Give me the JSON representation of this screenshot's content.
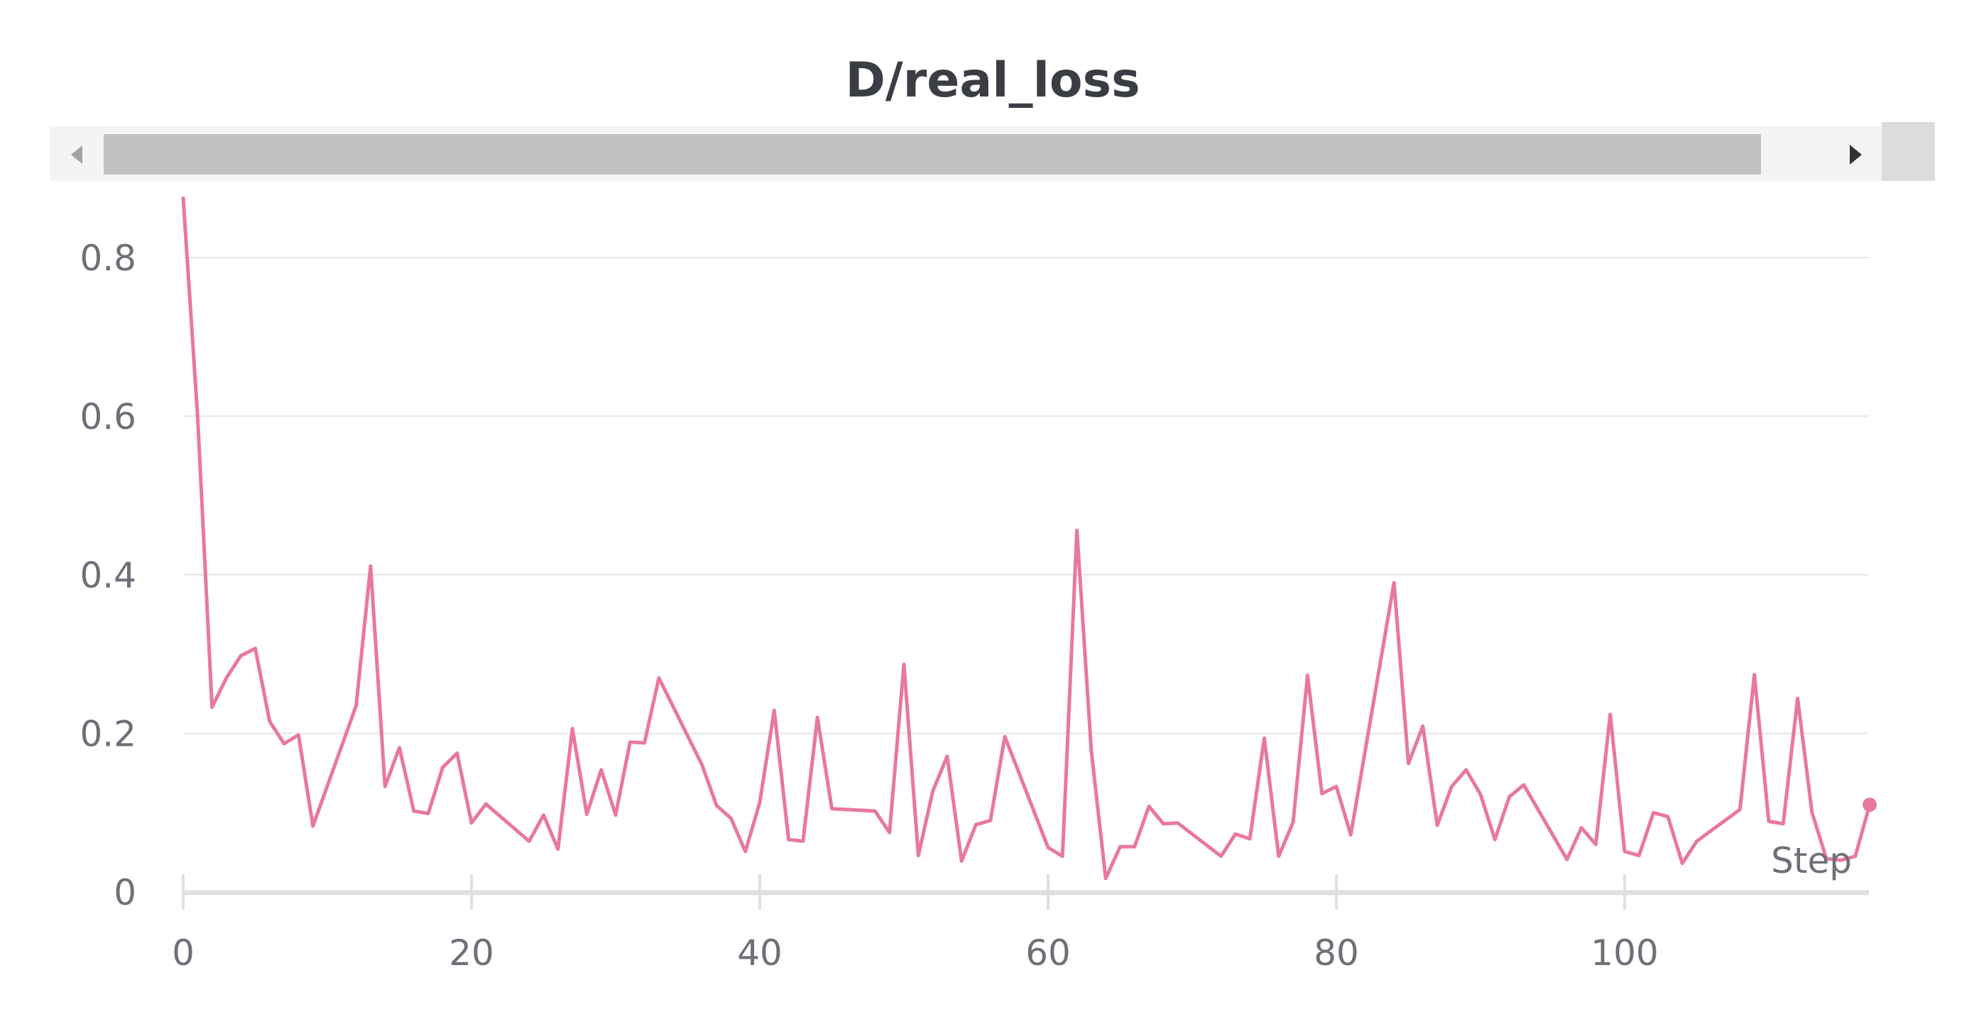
{
  "chart_data": {
    "type": "line",
    "title": "D/real_loss",
    "xlabel": "Step",
    "ylabel": "",
    "xlim": [
      0,
      117
    ],
    "ylim": [
      0,
      0.88
    ],
    "x_ticks": [
      0,
      20,
      40,
      60,
      80,
      100
    ],
    "y_ticks": [
      0,
      0.2,
      0.4,
      0.6,
      0.8
    ],
    "x_tick_labels": [
      "0",
      "20",
      "40",
      "60",
      "80",
      "100"
    ],
    "y_tick_labels": [
      "0",
      "0.2",
      "0.4",
      "0.6",
      "0.8"
    ],
    "grid": true,
    "legend": "none",
    "color": "#e8789e",
    "series": [
      {
        "x": [
          0,
          1,
          2,
          3,
          4,
          5,
          6,
          7,
          8,
          9,
          12,
          13,
          14,
          15,
          16,
          17,
          18,
          19,
          20,
          21,
          24,
          25,
          26,
          27,
          28,
          29,
          30,
          31,
          32,
          33,
          36,
          37,
          38,
          39,
          40,
          41,
          42,
          43,
          44,
          45,
          48,
          49,
          50,
          51,
          52,
          53,
          54,
          55,
          56,
          57,
          60,
          61,
          62,
          63,
          64,
          65,
          66,
          67,
          68,
          69,
          72,
          73,
          74,
          75,
          76,
          77,
          78,
          79,
          80,
          81,
          84,
          85,
          86,
          87,
          88,
          89,
          90,
          91,
          92,
          93,
          96,
          97,
          98,
          99,
          100,
          101,
          102,
          103,
          104,
          105,
          108,
          109,
          110,
          111,
          112,
          113,
          114,
          115,
          116,
          117
        ],
        "y": [
          0.875,
          0.6,
          0.233,
          0.27,
          0.298,
          0.307,
          0.215,
          0.187,
          0.198,
          0.083,
          0.235,
          0.411,
          0.133,
          0.182,
          0.102,
          0.099,
          0.157,
          0.175,
          0.087,
          0.111,
          0.064,
          0.097,
          0.054,
          0.206,
          0.098,
          0.154,
          0.097,
          0.189,
          0.188,
          0.27,
          0.16,
          0.109,
          0.093,
          0.051,
          0.113,
          0.229,
          0.066,
          0.064,
          0.22,
          0.105,
          0.102,
          0.075,
          0.287,
          0.046,
          0.127,
          0.171,
          0.039,
          0.085,
          0.09,
          0.196,
          0.056,
          0.045,
          0.456,
          0.178,
          0.017,
          0.057,
          0.057,
          0.108,
          0.086,
          0.087,
          0.045,
          0.073,
          0.067,
          0.194,
          0.045,
          0.088,
          0.273,
          0.124,
          0.133,
          0.072,
          0.39,
          0.162,
          0.209,
          0.084,
          0.133,
          0.154,
          0.123,
          0.066,
          0.12,
          0.135,
          0.041,
          0.081,
          0.06,
          0.224,
          0.051,
          0.046,
          0.1,
          0.095,
          0.036,
          0.064,
          0.104,
          0.274,
          0.089,
          0.086,
          0.244,
          0.1,
          0.042,
          0.04,
          0.045,
          0.11
        ]
      }
    ]
  },
  "scrollbar": {
    "left_arrow_icon": "triangle-left-icon",
    "right_arrow_icon": "triangle-right-icon"
  }
}
